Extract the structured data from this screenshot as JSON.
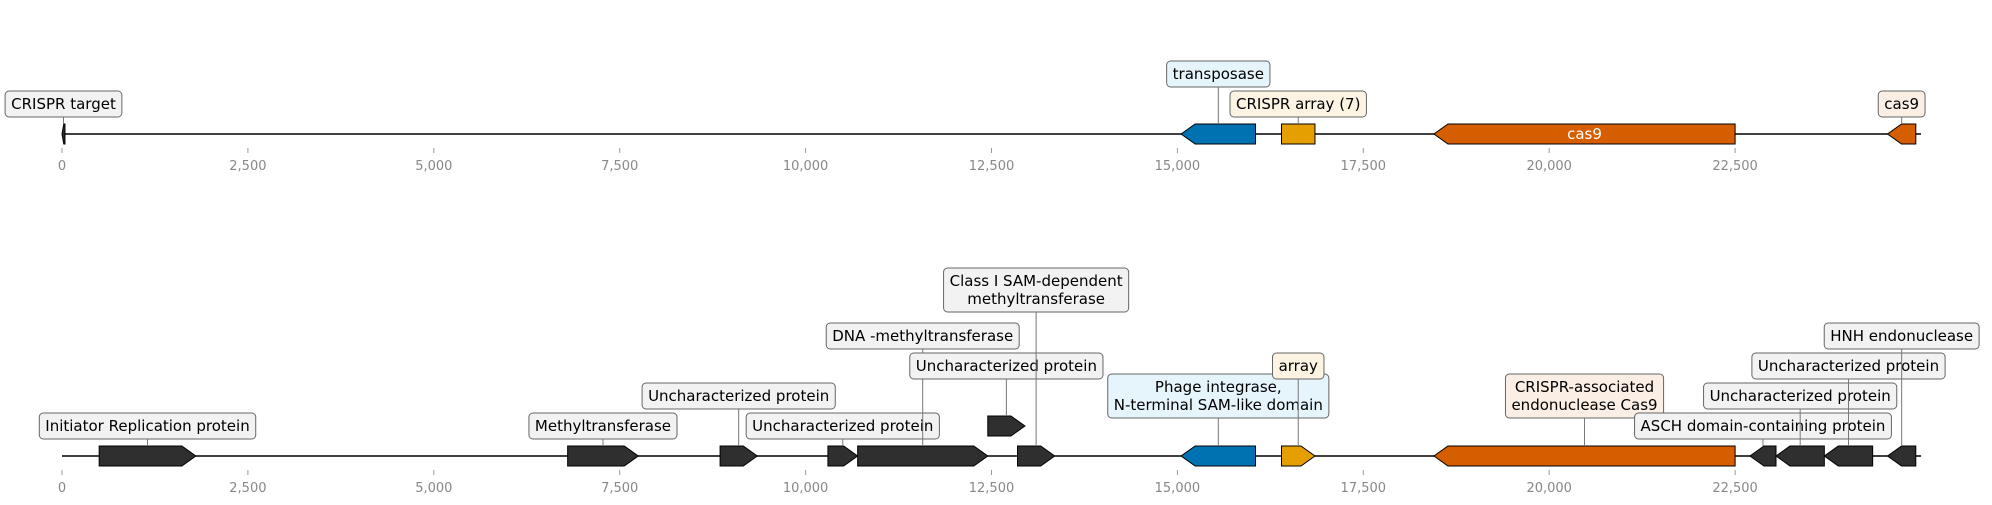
{
  "axis_ticks": [
    "0",
    "2,500",
    "5,000",
    "7,500",
    "10,000",
    "12,500",
    "15,000",
    "17,500",
    "20,000",
    "22,500"
  ],
  "axis_tick_values": [
    0,
    2500,
    5000,
    7500,
    10000,
    12500,
    15000,
    17500,
    20000,
    22500
  ],
  "axis_max": 25000,
  "colors": {
    "dark": "#2f2f2f",
    "blue": "#0072b2",
    "yellow": "#e69f00",
    "orange": "#d55e00",
    "box_gray": "#f2f2f2",
    "box_blue": "#e6f4fb",
    "box_cream": "#fdf3e3",
    "box_peach": "#fbeee4",
    "axis_text": "#888888"
  },
  "tracks": [
    {
      "name": "track-top",
      "features": [
        {
          "name": "crispr-target",
          "start": 0,
          "end": 40,
          "strand": -1,
          "color": "dark",
          "label": "CRISPR target",
          "box": "box_gray",
          "level": 0
        },
        {
          "name": "transposase",
          "start": 15050,
          "end": 16050,
          "strand": -1,
          "color": "blue",
          "label": "transposase",
          "box": "box_blue",
          "level": 1
        },
        {
          "name": "crispr-array-7",
          "start": 16400,
          "end": 16850,
          "strand": 0,
          "color": "yellow",
          "label": "CRISPR array (7)",
          "box": "box_cream",
          "level": 0
        },
        {
          "name": "cas9-main",
          "start": 18450,
          "end": 22500,
          "strand": -1,
          "color": "orange",
          "inner_label": "cas9"
        },
        {
          "name": "cas9-end",
          "start": 24550,
          "end": 24930,
          "strand": -1,
          "color": "orange",
          "label": "cas9",
          "box": "box_peach",
          "level": 0
        }
      ]
    },
    {
      "name": "track-bottom",
      "features": [
        {
          "name": "initiator-replication-protein",
          "start": 500,
          "end": 1800,
          "strand": 1,
          "color": "dark",
          "label": "Initiator Replication protein",
          "box": "box_gray",
          "level": 0
        },
        {
          "name": "methyltransferase",
          "start": 6800,
          "end": 7750,
          "strand": 1,
          "color": "dark",
          "label": "Methyltransferase",
          "box": "box_gray",
          "level": 0
        },
        {
          "name": "uncharacterized-1",
          "start": 8850,
          "end": 9350,
          "strand": 1,
          "color": "dark",
          "label": "Uncharacterized protein",
          "box": "box_gray",
          "level": 1
        },
        {
          "name": "uncharacterized-2",
          "start": 10300,
          "end": 10700,
          "strand": 1,
          "color": "dark",
          "label": "Uncharacterized protein",
          "box": "box_gray",
          "level": 0
        },
        {
          "name": "dna-methyltransferase",
          "start": 10700,
          "end": 12450,
          "strand": 1,
          "color": "dark",
          "label": "DNA -methyltransferase",
          "box": "box_gray",
          "level": 3
        },
        {
          "name": "uncharacterized-3",
          "start": 12450,
          "end": 12950,
          "strand": 1,
          "color": "dark",
          "label": "Uncharacterized protein",
          "box": "box_gray",
          "level": 2,
          "raised": true
        },
        {
          "name": "class-i-sam-methyltransferase",
          "start": 12850,
          "end": 13350,
          "strand": 1,
          "color": "dark",
          "label": "Class I SAM-dependent\nmethyltransferase",
          "box": "box_gray",
          "level": 4
        },
        {
          "name": "phage-integrase",
          "start": 15050,
          "end": 16050,
          "strand": -1,
          "color": "blue",
          "label": "Phage integrase,\nN-terminal SAM-like domain",
          "box": "box_blue",
          "level": 1
        },
        {
          "name": "array",
          "start": 16400,
          "end": 16850,
          "strand": 1,
          "color": "yellow",
          "label": "array",
          "box": "box_cream",
          "level": 2
        },
        {
          "name": "crispr-associated-cas9",
          "start": 18450,
          "end": 22500,
          "strand": -1,
          "color": "orange",
          "label": "CRISPR-associated\nendonuclease Cas9",
          "box": "box_peach",
          "level": 1
        },
        {
          "name": "asch-domain-protein",
          "start": 22700,
          "end": 23050,
          "strand": -1,
          "color": "dark",
          "label": "ASCH domain-containing protein",
          "box": "box_gray",
          "level": 0
        },
        {
          "name": "uncharacterized-4",
          "start": 23050,
          "end": 23700,
          "strand": -1,
          "color": "dark",
          "label": "Uncharacterized protein",
          "box": "box_gray",
          "level": 1
        },
        {
          "name": "uncharacterized-5",
          "start": 23700,
          "end": 24350,
          "strand": -1,
          "color": "dark",
          "label": "Uncharacterized protein",
          "box": "box_gray",
          "level": 2
        },
        {
          "name": "hnh-endonuclease",
          "start": 24550,
          "end": 24930,
          "strand": -1,
          "color": "dark",
          "label": "HNH endonuclease",
          "box": "box_gray",
          "level": 3
        }
      ]
    }
  ]
}
